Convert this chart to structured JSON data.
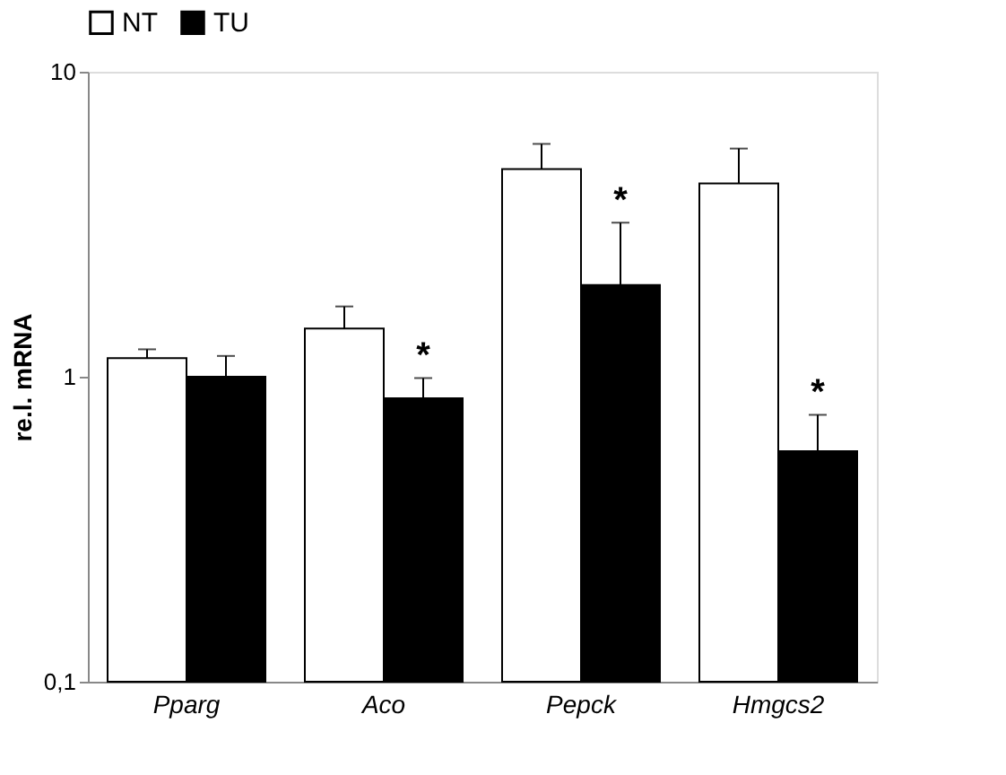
{
  "chart_data": {
    "type": "bar",
    "ylabel": "re.l. mRNA",
    "categories": [
      "Pparg",
      "Aco",
      "Pepck",
      "Hmgcs2"
    ],
    "series": [
      {
        "name": "NT",
        "color": "#ffffff",
        "values": [
          1.15,
          1.44,
          4.8,
          4.3
        ],
        "errors": [
          [
            1.15,
            1.23
          ],
          [
            1.44,
            1.7
          ],
          [
            4.8,
            5.8
          ],
          [
            4.3,
            5.6
          ]
        ]
      },
      {
        "name": "TU",
        "color": "#000000",
        "values": [
          1.0,
          0.85,
          2.0,
          0.57
        ],
        "errors": [
          [
            1.0,
            1.17
          ],
          [
            0.85,
            0.99
          ],
          [
            2.0,
            3.2
          ],
          [
            0.57,
            0.75
          ]
        ]
      }
    ],
    "log": "y",
    "ylim": [
      0.1,
      10
    ],
    "yticks": [
      {
        "value": 0.1,
        "label": "0,1"
      },
      1,
      10
    ],
    "grid": false,
    "legend": "top",
    "annotations": [
      {
        "text": "*",
        "x": "Aco",
        "y": 0.99
      },
      {
        "text": "*",
        "x": "Pepck",
        "y": 3.2
      },
      {
        "text": "*",
        "x": "Hmgcs2",
        "y": 0.75
      }
    ]
  }
}
